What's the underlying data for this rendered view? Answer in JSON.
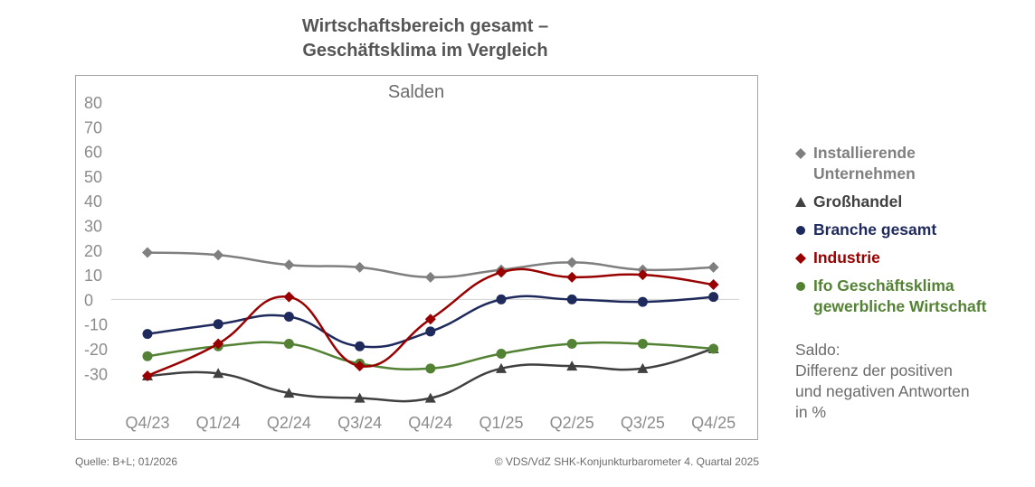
{
  "title_lines": [
    "Wirtschaftsbereich gesamt –",
    "Geschäftsklima im Vergleich"
  ],
  "note_lines": [
    "Saldo:",
    "Differenz der positiven",
    "und negativen Antworten",
    "in %"
  ],
  "source": "Quelle: B+L; 01/2026",
  "copyright": "© VDS/VdZ SHK-Konjunkturbarometer 4. Quartal 2025",
  "chart_data": {
    "type": "line",
    "title": "Wirtschaftsbereich gesamt – Geschäftsklima im Vergleich",
    "subtitle": "Salden",
    "xlabel": "",
    "ylabel": "",
    "categories": [
      "Q4/23",
      "Q1/24",
      "Q2/24",
      "Q3/24",
      "Q4/24",
      "Q1/25",
      "Q2/25",
      "Q3/25",
      "Q4/25"
    ],
    "y_ticks": [
      "80",
      "70",
      "60",
      "50",
      "40",
      "30",
      "20",
      "10",
      "0",
      "-10",
      "-20",
      "-30"
    ],
    "ylim": [
      -40,
      80
    ],
    "grid": false,
    "zero_line": true,
    "legend_position": "right",
    "series": [
      {
        "name": "Installierende Unternehmen",
        "name_lines": [
          "Installierende",
          "Unternehmen"
        ],
        "color": "#7f7f7f",
        "marker": "diamond",
        "values": [
          19,
          18,
          14,
          13,
          9,
          12,
          15,
          12,
          13
        ]
      },
      {
        "name": "Großhandel",
        "name_lines": [
          "Großhandel"
        ],
        "color": "#404040",
        "marker": "triangle",
        "values": [
          -31,
          -30,
          -38,
          -40,
          -40,
          -28,
          -27,
          -28,
          -20
        ]
      },
      {
        "name": "Branche gesamt",
        "name_lines": [
          "Branche gesamt"
        ],
        "color": "#1f2a5c",
        "marker": "circle",
        "values": [
          -14,
          -10,
          -7,
          -19,
          -13,
          0,
          0,
          -1,
          1
        ]
      },
      {
        "name": "Industrie",
        "name_lines": [
          "Industrie"
        ],
        "color": "#990000",
        "marker": "diamond",
        "values": [
          -31,
          -18,
          1,
          -27,
          -8,
          11,
          9,
          10,
          6
        ]
      },
      {
        "name": "Ifo Geschäftsklima gewerbliche Wirtschaft",
        "name_lines": [
          "Ifo Geschäftsklima",
          "gewerbliche Wirtschaft"
        ],
        "color": "#548235",
        "marker": "circle",
        "values": [
          -23,
          -19,
          -18,
          -26,
          -28,
          -22,
          -18,
          -18,
          -20
        ]
      }
    ]
  }
}
